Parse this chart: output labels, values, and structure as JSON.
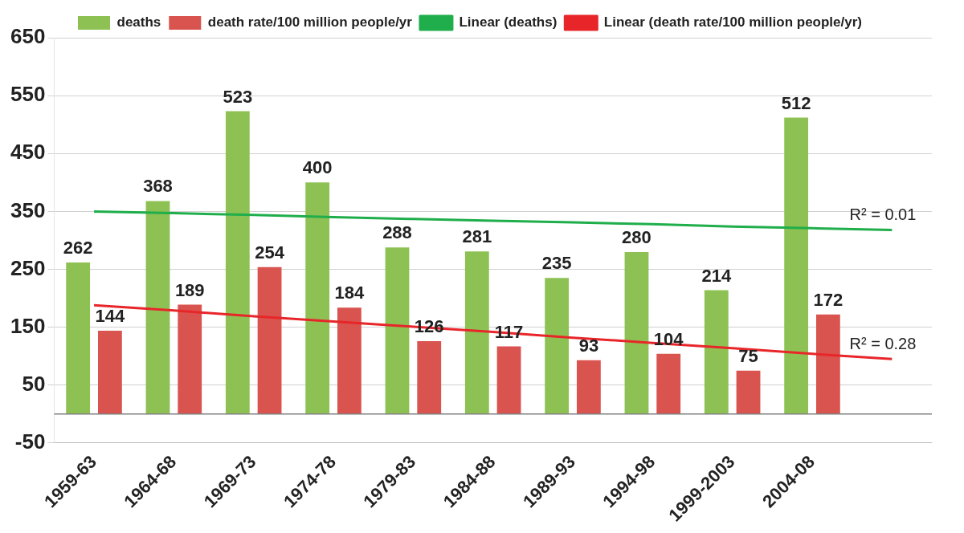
{
  "chart_data": {
    "type": "bar",
    "categories": [
      "1959-63",
      "1964-68",
      "1969-73",
      "1974-78",
      "1979-83",
      "1984-88",
      "1989-93",
      "1994-98",
      "1999-2003",
      "2004-08",
      null
    ],
    "series": [
      {
        "name": "deaths",
        "color": "#8dc153",
        "values": [
          262,
          368,
          523,
          400,
          288,
          281,
          235,
          280,
          214,
          512,
          null
        ],
        "value_labels": [
          "262",
          "368",
          "523",
          "400",
          "288",
          "281",
          "235",
          "280",
          "214",
          "512",
          null
        ]
      },
      {
        "name": "death rate/100 million people/yr",
        "color": "#d9534f",
        "values": [
          144,
          189,
          254,
          184,
          126,
          117,
          93,
          104,
          75,
          172,
          null
        ],
        "value_labels": [
          "144",
          "189",
          "254",
          "184",
          "126",
          "117",
          "93",
          "104",
          "75",
          "172",
          null
        ]
      },
      {
        "name": "Linear (deaths)",
        "type": "line",
        "color": "#1fae4b",
        "values": [
          350,
          347,
          344,
          340,
          337,
          334,
          331,
          328,
          324,
          321,
          318
        ]
      },
      {
        "name": "Linear (death rate/100 million people/yr)",
        "type": "line",
        "color": "#e8262a",
        "values": [
          188,
          179,
          169,
          160,
          151,
          142,
          132,
          123,
          114,
          104,
          95
        ]
      }
    ],
    "ylim": [
      -50,
      650
    ],
    "yticks": [
      -50,
      50,
      150,
      250,
      350,
      450,
      550,
      650
    ],
    "grid": "y",
    "legend": "top",
    "ref_lines": [
      {
        "axis": "y",
        "value": 0,
        "color": "#808080"
      }
    ],
    "annotations": [
      "R² = 0.01",
      "R² = 0.28"
    ]
  }
}
